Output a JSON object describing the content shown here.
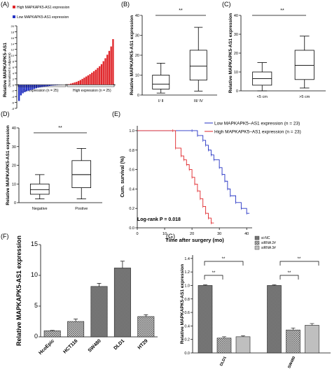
{
  "panels": {
    "A": {
      "letter": "(A)",
      "legend": [
        "High MAPKAPK5-AS1 expression",
        "Low MAPKAPK5-AS1 expression"
      ],
      "ylabel": "Relative MAPKAPK5-AS1",
      "ylabel2": "(Normalized to Adjacent)",
      "low_text": "Low expression (n = 25)",
      "high_text": "High expression (n = 25)"
    },
    "B": {
      "letter": "(B)",
      "sig": "**"
    },
    "C": {
      "letter": "(C)",
      "sig": "**"
    },
    "D": {
      "letter": "(D)",
      "sig": "**"
    },
    "E": {
      "letter": "(E)",
      "logrank": "Log-rank P = 0.018"
    },
    "F": {
      "letter": "(F)"
    },
    "G": {
      "letter": "(G)",
      "sig": "**"
    }
  },
  "colors": {
    "high": "#e0262a",
    "low": "#2533c4",
    "bar_f": "#3a3a3a"
  },
  "chart_data": [
    {
      "panel": "A",
      "type": "bar",
      "ylabel": "Relative MAPKAPK5-AS1 (Normalized to Adjacent)",
      "yticks": [
        -8,
        -6,
        -4,
        -2,
        0,
        2,
        4,
        6,
        8,
        10,
        12,
        14,
        16,
        18,
        20
      ],
      "ylim": [
        -8,
        20
      ],
      "series": [
        {
          "name": "Low MAPKAPK5-AS1 expression",
          "color": "#2533c4",
          "values": [
            -5.5,
            -3.6,
            -2.9,
            -2.5,
            -2.2,
            -2.0,
            -1.8,
            -1.6,
            -1.4,
            -1.2,
            -1.0,
            -0.9,
            -0.8,
            -0.7,
            -0.6,
            -0.5,
            -0.4,
            -0.3,
            -0.25,
            -0.2,
            -0.15,
            -0.1,
            -0.08,
            -0.05,
            -0.02
          ]
        },
        {
          "name": "High MAPKAPK5-AS1 expression",
          "color": "#e0262a",
          "values": [
            0.1,
            0.2,
            0.4,
            0.6,
            0.8,
            1.0,
            1.3,
            1.6,
            2.0,
            2.4,
            2.8,
            3.2,
            3.6,
            4.1,
            4.6,
            5.1,
            5.7,
            6.3,
            7.0,
            8.0,
            9.0,
            10.2,
            11.5,
            13.0,
            15.5
          ]
        }
      ]
    },
    {
      "panel": "B",
      "type": "box",
      "ylabel": "Relative MAPKAPK5-AS1 expression",
      "yticks": [
        0,
        10,
        20,
        30,
        40
      ],
      "ylim": [
        0,
        40
      ],
      "categories": [
        "I/ II",
        "III/ IV"
      ],
      "boxes": [
        {
          "min": 1,
          "q1": 3,
          "median": 5.5,
          "q3": 10,
          "max": 16
        },
        {
          "min": 2,
          "q1": 7.5,
          "median": 14.5,
          "q3": 22.5,
          "max": 34
        }
      ]
    },
    {
      "panel": "C",
      "type": "box",
      "ylabel": "Relative MAPKAPK5-AS1 expression",
      "yticks": [
        0,
        10,
        20,
        30,
        40
      ],
      "ylim": [
        0,
        40
      ],
      "categories": [
        "<5 cm",
        ">5 cm"
      ],
      "boxes": [
        {
          "min": 0,
          "q1": 3,
          "median": 6.5,
          "q3": 10,
          "max": 15
        },
        {
          "min": 1.5,
          "q1": 6,
          "median": 13.5,
          "q3": 21.5,
          "max": 29
        }
      ]
    },
    {
      "panel": "D",
      "type": "box",
      "ylabel": "Relative MAPKAPK5-AS1 expression",
      "yticks": [
        0,
        10,
        20,
        30,
        40
      ],
      "ylim": [
        0,
        40
      ],
      "categories": [
        "Negative",
        "Postive"
      ],
      "boxes": [
        {
          "min": 2,
          "q1": 4.5,
          "median": 7,
          "q3": 10,
          "max": 15
        },
        {
          "min": 2,
          "q1": 8,
          "median": 15,
          "q3": 22.5,
          "max": 29
        }
      ]
    },
    {
      "panel": "E",
      "type": "line",
      "xlabel": "Time after surgery (mo)",
      "ylabel": "Cum. survival (%)",
      "xticks": [
        0,
        10,
        20,
        30,
        40
      ],
      "yticks": [
        0.0,
        0.2,
        0.4,
        0.6,
        0.8,
        1.0
      ],
      "xlim": [
        0,
        42
      ],
      "ylim": [
        0,
        1.05
      ],
      "series": [
        {
          "name": "Low MAPKAPK5–AS1 expression (n = 23)",
          "color": "#2533c4",
          "x": [
            0,
            20,
            22,
            24,
            25,
            26,
            27,
            28,
            30,
            31,
            32,
            33,
            34,
            36,
            38,
            40,
            41
          ],
          "y": [
            1.0,
            1.0,
            0.95,
            0.9,
            0.85,
            0.8,
            0.75,
            0.7,
            0.62,
            0.55,
            0.48,
            0.4,
            0.33,
            0.26,
            0.2,
            0.15,
            0.15
          ]
        },
        {
          "name": "High MAPKAPK5–AS1 expression (n = 23)",
          "color": "#e0262a",
          "x": [
            0,
            13,
            14,
            16,
            17,
            18,
            19,
            20,
            21,
            22,
            23,
            24,
            25,
            26,
            27,
            28
          ],
          "y": [
            1.0,
            1.0,
            0.82,
            0.74,
            0.7,
            0.65,
            0.6,
            0.52,
            0.45,
            0.38,
            0.3,
            0.22,
            0.15,
            0.1,
            0.05,
            0.05
          ]
        }
      ]
    },
    {
      "panel": "F",
      "type": "bar",
      "ylabel": "Relative MAPKAPK5-AS1 expression",
      "yticks": [
        0,
        5,
        10,
        15
      ],
      "ylim": [
        0,
        15
      ],
      "categories": [
        "HcoEpic",
        "HCT116",
        "SW480",
        "DLD1",
        "HT29"
      ],
      "values": [
        1.0,
        2.5,
        8.2,
        11.2,
        3.3
      ],
      "errors": [
        0.05,
        0.4,
        0.5,
        1.1,
        0.3
      ]
    },
    {
      "panel": "G",
      "type": "bar",
      "ylabel": "Relative MAPKAPK5-AS1 expression",
      "yticks": [
        0.0,
        0.2,
        0.4,
        0.6,
        0.8,
        1.0,
        1.2,
        1.4
      ],
      "ylim": [
        0,
        1.45
      ],
      "categories": [
        "DLD1",
        "SW480"
      ],
      "series": [
        {
          "name": "si-NC",
          "values": [
            1.0,
            1.0
          ],
          "errors": [
            0.01,
            0.01
          ]
        },
        {
          "name": "siRNA 2#",
          "values": [
            0.22,
            0.34
          ],
          "errors": [
            0.02,
            0.03
          ]
        },
        {
          "name": "siRNA 3#",
          "values": [
            0.24,
            0.41
          ],
          "errors": [
            0.015,
            0.025
          ]
        }
      ]
    }
  ]
}
